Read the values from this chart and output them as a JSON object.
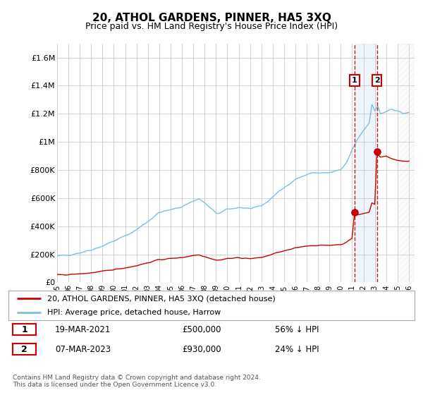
{
  "title": "20, ATHOL GARDENS, PINNER, HA5 3XQ",
  "subtitle": "Price paid vs. HM Land Registry's House Price Index (HPI)",
  "title_fontsize": 11,
  "subtitle_fontsize": 9,
  "ylabel_ticks": [
    "£0",
    "£200K",
    "£400K",
    "£600K",
    "£800K",
    "£1M",
    "£1.2M",
    "£1.4M",
    "£1.6M"
  ],
  "ytick_vals": [
    0,
    200000,
    400000,
    600000,
    800000,
    1000000,
    1200000,
    1400000,
    1600000
  ],
  "ylim": [
    0,
    1700000
  ],
  "xlim_start": 1995.0,
  "xlim_end": 2026.5,
  "hpi_color": "#7fbfdf",
  "price_color": "#cc0000",
  "sale1_x": 2021.21,
  "sale1_y": 500000,
  "sale2_x": 2023.18,
  "sale2_y": 930000,
  "vline_color": "#cc0000",
  "label1": "1",
  "label2": "2",
  "legend_red_label": "20, ATHOL GARDENS, PINNER, HA5 3XQ (detached house)",
  "legend_blue_label": "HPI: Average price, detached house, Harrow",
  "table_row1": [
    "1",
    "19-MAR-2021",
    "£500,000",
    "56% ↓ HPI"
  ],
  "table_row2": [
    "2",
    "07-MAR-2023",
    "£930,000",
    "24% ↓ HPI"
  ],
  "footnote": "Contains HM Land Registry data © Crown copyright and database right 2024.\nThis data is licensed under the Open Government Licence v3.0.",
  "bg_color": "#ffffff",
  "grid_color": "#cccccc",
  "shade_color": "#ddeeff",
  "hatch_color": "#cccccc"
}
